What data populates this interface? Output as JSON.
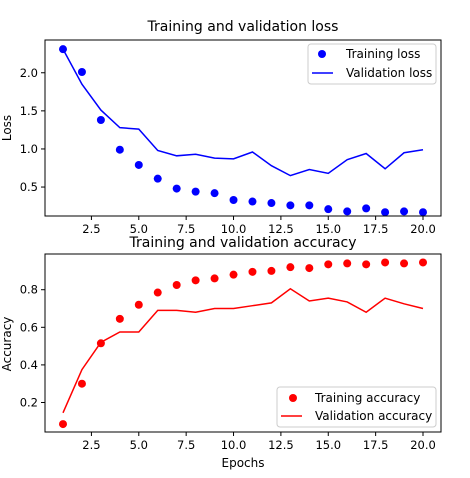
{
  "chart_data": [
    {
      "type": "scatter+line",
      "title": "Training and validation loss",
      "xlabel": "",
      "ylabel": "Loss",
      "xlim": [
        0.05,
        20.95
      ],
      "ylim": [
        0.12,
        2.43
      ],
      "xticks": [
        2.5,
        5.0,
        7.5,
        10.0,
        12.5,
        15.0,
        17.5,
        20.0
      ],
      "xtick_labels": [
        "2.5",
        "5.0",
        "7.5",
        "10.0",
        "12.5",
        "15.0",
        "17.5",
        "20.0"
      ],
      "yticks": [
        0.5,
        1.0,
        1.5,
        2.0
      ],
      "ytick_labels": [
        "0.5",
        "1.0",
        "1.5",
        "2.0"
      ],
      "legend_position": "top-right",
      "x": [
        1,
        2,
        3,
        4,
        5,
        6,
        7,
        8,
        9,
        10,
        11,
        12,
        13,
        14,
        15,
        16,
        17,
        18,
        19,
        20
      ],
      "series": [
        {
          "name": "Training loss",
          "style": "points",
          "color": "#0000ff",
          "values": [
            2.31,
            2.01,
            1.38,
            0.99,
            0.79,
            0.61,
            0.48,
            0.44,
            0.42,
            0.33,
            0.31,
            0.29,
            0.26,
            0.26,
            0.21,
            0.18,
            0.22,
            0.17,
            0.18,
            0.17
          ]
        },
        {
          "name": "Validation loss",
          "style": "line",
          "color": "#0000ff",
          "values": [
            2.31,
            1.85,
            1.51,
            1.28,
            1.26,
            0.98,
            0.91,
            0.93,
            0.88,
            0.87,
            0.96,
            0.78,
            0.65,
            0.73,
            0.68,
            0.86,
            0.94,
            0.74,
            0.95,
            0.99
          ]
        }
      ]
    },
    {
      "type": "scatter+line",
      "title": "Training and validation accuracy",
      "xlabel": "Epochs",
      "ylabel": "Accuracy",
      "xlim": [
        0.05,
        20.95
      ],
      "ylim": [
        0.043,
        0.99
      ],
      "xticks": [
        2.5,
        5.0,
        7.5,
        10.0,
        12.5,
        15.0,
        17.5,
        20.0
      ],
      "xtick_labels": [
        "2.5",
        "5.0",
        "7.5",
        "10.0",
        "12.5",
        "15.0",
        "17.5",
        "20.0"
      ],
      "yticks": [
        0.2,
        0.4,
        0.6,
        0.8
      ],
      "ytick_labels": [
        "0.2",
        "0.4",
        "0.6",
        "0.8"
      ],
      "legend_position": "bottom-right",
      "x": [
        1,
        2,
        3,
        4,
        5,
        6,
        7,
        8,
        9,
        10,
        11,
        12,
        13,
        14,
        15,
        16,
        17,
        18,
        19,
        20
      ],
      "series": [
        {
          "name": "Training accuracy",
          "style": "points",
          "color": "#ff0000",
          "values": [
            0.085,
            0.3,
            0.515,
            0.645,
            0.72,
            0.785,
            0.825,
            0.85,
            0.86,
            0.88,
            0.895,
            0.9,
            0.92,
            0.915,
            0.935,
            0.94,
            0.935,
            0.945,
            0.94,
            0.945
          ]
        },
        {
          "name": "Validation accuracy",
          "style": "line",
          "color": "#ff0000",
          "values": [
            0.145,
            0.375,
            0.52,
            0.575,
            0.575,
            0.69,
            0.69,
            0.68,
            0.7,
            0.7,
            0.715,
            0.73,
            0.805,
            0.74,
            0.755,
            0.735,
            0.68,
            0.755,
            0.725,
            0.7
          ]
        }
      ]
    }
  ]
}
